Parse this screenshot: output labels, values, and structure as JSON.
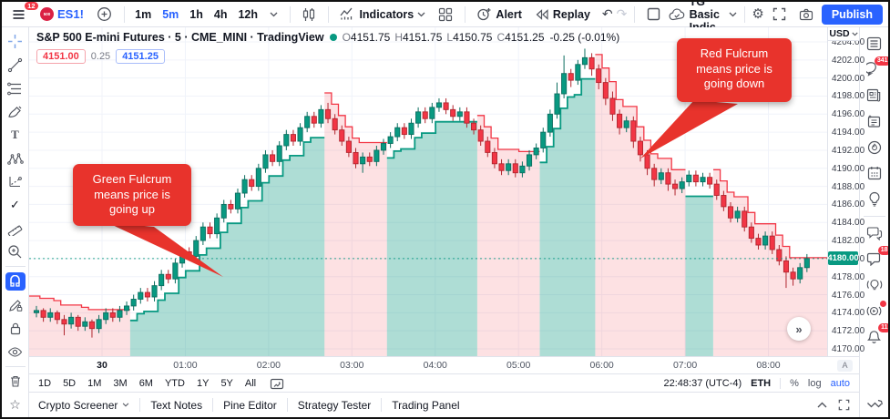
{
  "topbar": {
    "menu_badge": "12",
    "symbol": "ES1!",
    "symbol_logo": "500",
    "intervals": [
      "1m",
      "5m",
      "1h",
      "4h",
      "12h"
    ],
    "active_interval": "5m",
    "indicators_label": "Indicators",
    "alert_label": "Alert",
    "replay_label": "Replay",
    "undo_glyph": "↶",
    "redo_glyph": "↷",
    "layout_name": "TG Basic Indic...",
    "publish_label": "Publish",
    "gear_glyph": "⚙"
  },
  "legend": {
    "symbol_line": "S&P 500 E-mini Futures · 5 · CME_MINI · TradingView",
    "ohlc": [
      {
        "k": "O",
        "v": "4151.75"
      },
      {
        "k": "H",
        "v": "4151.75"
      },
      {
        "k": "L",
        "v": "4150.75"
      },
      {
        "k": "C",
        "v": "4151.25"
      }
    ],
    "change": "-0.25 (-0.01%)",
    "bid": "4151.00",
    "spread": "0.25",
    "ask": "4151.25"
  },
  "callouts": {
    "green": {
      "text": "Green Fulcrum means price is going up"
    },
    "red": {
      "text": "Red Fulcrum means price is going down"
    }
  },
  "price_axis": {
    "currency": "USD",
    "last": "4180.00",
    "corner_label": "A"
  },
  "range_bar": {
    "ranges": [
      "1D",
      "5D",
      "1M",
      "3M",
      "6M",
      "YTD",
      "1Y",
      "5Y",
      "All"
    ],
    "clock": "22:48:37 (UTC-4)",
    "session": "ETH",
    "percent_label": "%",
    "log_label": "log",
    "auto_label": "auto"
  },
  "tabs": {
    "items": [
      {
        "label": "Crypto Screener",
        "chevron": true
      },
      {
        "label": "Text Notes"
      },
      {
        "label": "Pine Editor"
      },
      {
        "label": "Strategy Tester"
      },
      {
        "label": "Trading Panel"
      }
    ]
  },
  "sidebar": {
    "chat_badge": "341",
    "messages_badge": "18",
    "notifications_badge": "11"
  },
  "misc": {
    "goto_latest_glyph": "»",
    "check_tool_glyph": "✓",
    "star_glyph": "☆",
    "text_tool_glyph": "T"
  },
  "colors": {
    "accent": "#2962ff",
    "up": "#089981",
    "down": "#f23645",
    "up_fill": "rgba(8,153,129,0.33)",
    "down_fill": "rgba(242,54,69,0.15)",
    "callout": "#e8332c",
    "grid": "#f0f3fa"
  },
  "chart_data": {
    "type": "candlestick",
    "symbol": "ES1!",
    "title": "S&P 500 E-mini Futures",
    "exchange": "CME_MINI",
    "interval": "5",
    "currency": "USD",
    "last_price": 4180.0,
    "ylim": [
      4168.6,
      4205.6
    ],
    "price_ticks": [
      4204,
      4202,
      4200,
      4198,
      4196,
      4194,
      4192,
      4190,
      4188,
      4186,
      4184,
      4182,
      4180,
      4178,
      4176,
      4174,
      4172,
      4170
    ],
    "time_labels": [
      {
        "t": "30",
        "major": true
      },
      {
        "t": "01:00"
      },
      {
        "t": "02:00"
      },
      {
        "t": "03:00"
      },
      {
        "t": "04:00"
      },
      {
        "t": "05:00"
      },
      {
        "t": "06:00"
      },
      {
        "t": "07:00"
      },
      {
        "t": "08:00"
      }
    ],
    "regimes": [
      {
        "start": 0,
        "end": 13,
        "trend": "down"
      },
      {
        "start": 14,
        "end": 41,
        "trend": "up"
      },
      {
        "start": 42,
        "end": 50,
        "trend": "down"
      },
      {
        "start": 51,
        "end": 63,
        "trend": "up"
      },
      {
        "start": 64,
        "end": 72,
        "trend": "down"
      },
      {
        "start": 73,
        "end": 80,
        "trend": "up"
      },
      {
        "start": 81,
        "end": 93,
        "trend": "down"
      },
      {
        "start": 94,
        "end": 97,
        "trend": "up"
      },
      {
        "start": 98,
        "end": 111,
        "trend": "down"
      }
    ],
    "candles": [
      [
        4174.0,
        4174.75,
        4173.5,
        4174.25
      ],
      [
        4174.25,
        4174.5,
        4173.0,
        4173.5
      ],
      [
        4173.5,
        4174.5,
        4173.0,
        4174.0
      ],
      [
        4174.0,
        4174.25,
        4172.75,
        4173.25
      ],
      [
        4173.25,
        4173.75,
        4171.5,
        4172.75
      ],
      [
        4172.75,
        4174.0,
        4172.25,
        4173.5
      ],
      [
        4173.5,
        4173.75,
        4172.0,
        4172.5
      ],
      [
        4172.5,
        4173.5,
        4172.0,
        4173.0
      ],
      [
        4173.0,
        4173.25,
        4171.25,
        4172.25
      ],
      [
        4172.25,
        4173.75,
        4171.75,
        4173.25
      ],
      [
        4173.25,
        4174.5,
        4172.75,
        4174.0
      ],
      [
        4174.0,
        4174.5,
        4173.0,
        4173.5
      ],
      [
        4173.5,
        4174.75,
        4173.0,
        4174.25
      ],
      [
        4174.25,
        4175.25,
        4173.75,
        4174.75
      ],
      [
        4174.75,
        4176.0,
        4174.25,
        4175.5
      ],
      [
        4175.5,
        4176.75,
        4175.0,
        4176.25
      ],
      [
        4176.25,
        4176.75,
        4175.25,
        4175.75
      ],
      [
        4175.75,
        4177.5,
        4175.25,
        4177.0
      ],
      [
        4177.0,
        4178.75,
        4176.5,
        4178.25
      ],
      [
        4178.25,
        4178.75,
        4177.25,
        4177.75
      ],
      [
        4177.75,
        4180.0,
        4177.25,
        4179.5
      ],
      [
        4179.5,
        4181.25,
        4179.0,
        4180.75
      ],
      [
        4180.75,
        4181.25,
        4179.75,
        4180.25
      ],
      [
        4180.25,
        4182.5,
        4179.75,
        4182.0
      ],
      [
        4182.0,
        4184.0,
        4181.5,
        4183.5
      ],
      [
        4183.5,
        4184.0,
        4182.25,
        4182.75
      ],
      [
        4182.75,
        4185.0,
        4182.25,
        4184.5
      ],
      [
        4184.5,
        4186.5,
        4184.0,
        4186.0
      ],
      [
        4186.0,
        4186.5,
        4185.0,
        4185.5
      ],
      [
        4185.5,
        4187.75,
        4185.0,
        4187.25
      ],
      [
        4187.25,
        4189.25,
        4186.75,
        4188.75
      ],
      [
        4188.75,
        4189.25,
        4187.5,
        4188.0
      ],
      [
        4188.0,
        4190.5,
        4187.5,
        4190.0
      ],
      [
        4190.0,
        4192.0,
        4189.5,
        4191.5
      ],
      [
        4191.5,
        4192.0,
        4190.25,
        4190.75
      ],
      [
        4190.75,
        4193.0,
        4190.25,
        4192.5
      ],
      [
        4192.5,
        4194.25,
        4192.0,
        4193.75
      ],
      [
        4193.75,
        4194.25,
        4192.5,
        4193.0
      ],
      [
        4193.0,
        4195.0,
        4192.5,
        4194.5
      ],
      [
        4194.5,
        4196.25,
        4194.0,
        4195.75
      ],
      [
        4195.75,
        4196.25,
        4194.5,
        4195.0
      ],
      [
        4195.0,
        4197.0,
        4194.5,
        4196.5
      ],
      [
        4196.5,
        4197.25,
        4195.0,
        4195.5
      ],
      [
        4195.5,
        4196.0,
        4193.75,
        4194.25
      ],
      [
        4194.25,
        4194.75,
        4192.5,
        4193.0
      ],
      [
        4193.0,
        4193.5,
        4191.25,
        4191.75
      ],
      [
        4191.75,
        4192.25,
        4190.0,
        4190.5
      ],
      [
        4190.5,
        4191.75,
        4189.5,
        4191.25
      ],
      [
        4191.25,
        4191.75,
        4190.25,
        4190.75
      ],
      [
        4190.75,
        4192.5,
        4190.25,
        4192.0
      ],
      [
        4192.0,
        4193.25,
        4191.5,
        4192.75
      ],
      [
        4192.75,
        4194.0,
        4192.25,
        4193.5
      ],
      [
        4193.5,
        4195.0,
        4193.0,
        4194.5
      ],
      [
        4194.5,
        4195.0,
        4193.25,
        4193.75
      ],
      [
        4193.75,
        4195.5,
        4193.25,
        4195.0
      ],
      [
        4195.0,
        4196.75,
        4194.5,
        4196.25
      ],
      [
        4196.25,
        4196.75,
        4195.0,
        4195.5
      ],
      [
        4195.5,
        4197.25,
        4195.0,
        4196.75
      ],
      [
        4196.75,
        4197.75,
        4196.25,
        4197.25
      ],
      [
        4197.25,
        4197.75,
        4196.0,
        4196.5
      ],
      [
        4196.5,
        4197.0,
        4195.25,
        4195.75
      ],
      [
        4195.75,
        4196.75,
        4195.25,
        4196.25
      ],
      [
        4196.25,
        4196.75,
        4194.5,
        4195.0
      ],
      [
        4195.0,
        4195.5,
        4193.75,
        4194.25
      ],
      [
        4194.25,
        4194.75,
        4192.5,
        4193.0
      ],
      [
        4193.0,
        4193.5,
        4191.25,
        4191.75
      ],
      [
        4191.75,
        4192.25,
        4190.0,
        4190.5
      ],
      [
        4190.5,
        4191.0,
        4189.25,
        4189.75
      ],
      [
        4189.75,
        4191.0,
        4189.25,
        4190.5
      ],
      [
        4190.5,
        4191.0,
        4189.0,
        4189.5
      ],
      [
        4189.5,
        4190.75,
        4189.0,
        4190.25
      ],
      [
        4190.25,
        4192.0,
        4189.75,
        4191.5
      ],
      [
        4191.5,
        4192.75,
        4191.0,
        4192.25
      ],
      [
        4192.25,
        4194.5,
        4191.75,
        4194.0
      ],
      [
        4194.0,
        4196.5,
        4193.5,
        4196.0
      ],
      [
        4196.0,
        4199.5,
        4195.5,
        4198.25
      ],
      [
        4198.25,
        4202.5,
        4197.75,
        4200.5
      ],
      [
        4200.5,
        4201.0,
        4199.0,
        4199.75
      ],
      [
        4199.75,
        4202.0,
        4199.25,
        4201.5
      ],
      [
        4201.5,
        4203.25,
        4201.0,
        4202.25
      ],
      [
        4202.25,
        4202.75,
        4200.25,
        4201.0
      ],
      [
        4201.0,
        4201.5,
        4198.75,
        4199.5
      ],
      [
        4199.5,
        4200.0,
        4197.0,
        4197.75
      ],
      [
        4197.75,
        4198.5,
        4195.25,
        4196.0
      ],
      [
        4196.0,
        4196.5,
        4193.75,
        4194.5
      ],
      [
        4194.5,
        4195.75,
        4194.0,
        4195.25
      ],
      [
        4195.25,
        4195.75,
        4192.25,
        4193.0
      ],
      [
        4193.0,
        4193.5,
        4190.75,
        4191.5
      ],
      [
        4191.5,
        4192.0,
        4189.25,
        4190.0
      ],
      [
        4190.0,
        4190.5,
        4188.0,
        4188.75
      ],
      [
        4188.75,
        4190.0,
        4188.25,
        4189.5
      ],
      [
        4189.5,
        4190.0,
        4187.5,
        4188.25
      ],
      [
        4188.25,
        4188.75,
        4187.0,
        4187.75
      ],
      [
        4187.75,
        4189.0,
        4187.25,
        4188.5
      ],
      [
        4188.5,
        4189.75,
        4188.0,
        4189.25
      ],
      [
        4189.25,
        4189.75,
        4188.0,
        4188.5
      ],
      [
        4188.5,
        4189.5,
        4188.0,
        4189.0
      ],
      [
        4189.0,
        4189.5,
        4187.75,
        4188.25
      ],
      [
        4188.25,
        4188.75,
        4186.5,
        4187.0
      ],
      [
        4187.0,
        4187.5,
        4185.25,
        4185.75
      ],
      [
        4185.75,
        4186.25,
        4184.0,
        4184.5
      ],
      [
        4184.5,
        4185.75,
        4184.0,
        4185.25
      ],
      [
        4185.25,
        4185.75,
        4183.0,
        4183.5
      ],
      [
        4183.5,
        4184.0,
        4181.75,
        4182.25
      ],
      [
        4182.25,
        4182.75,
        4181.0,
        4181.5
      ],
      [
        4181.5,
        4183.0,
        4181.0,
        4182.5
      ],
      [
        4182.5,
        4183.0,
        4180.5,
        4181.0
      ],
      [
        4181.0,
        4181.5,
        4179.25,
        4179.75
      ],
      [
        4179.75,
        4180.25,
        4176.75,
        4178.5
      ],
      [
        4178.5,
        4179.0,
        4177.0,
        4177.75
      ],
      [
        4177.75,
        4179.5,
        4177.25,
        4179.0
      ],
      [
        4179.0,
        4180.5,
        4178.5,
        4180.0
      ]
    ]
  }
}
